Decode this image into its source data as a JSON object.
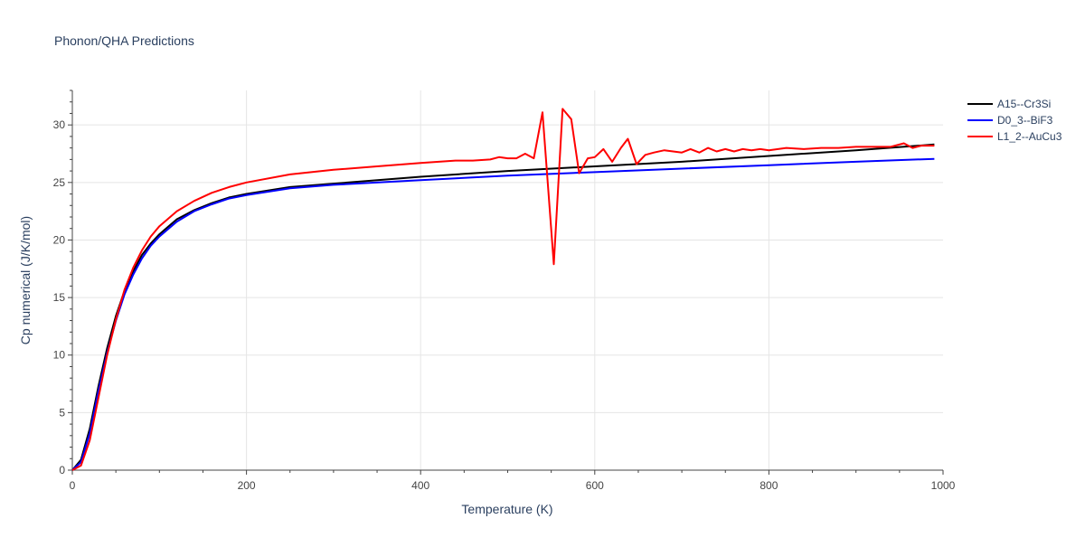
{
  "chart_data": {
    "type": "line",
    "title": "Phonon/QHA Predictions",
    "xlabel": "Temperature (K)",
    "ylabel": "Cp numerical (J/K/mol)",
    "xlim": [
      0,
      1000
    ],
    "ylim": [
      0,
      33
    ],
    "x_ticks": [
      0,
      200,
      400,
      600,
      800,
      1000
    ],
    "y_ticks": [
      0,
      5,
      10,
      15,
      20,
      25,
      30
    ],
    "grid": true,
    "legend_position": "top-right",
    "series": [
      {
        "name": "A15--Cr3Si",
        "color": "#000000",
        "points": [
          [
            0,
            0
          ],
          [
            10,
            0.9
          ],
          [
            20,
            3.6
          ],
          [
            30,
            7.3
          ],
          [
            40,
            10.6
          ],
          [
            50,
            13.4
          ],
          [
            60,
            15.6
          ],
          [
            70,
            17.3
          ],
          [
            80,
            18.7
          ],
          [
            90,
            19.7
          ],
          [
            100,
            20.5
          ],
          [
            120,
            21.8
          ],
          [
            140,
            22.6
          ],
          [
            160,
            23.2
          ],
          [
            180,
            23.7
          ],
          [
            200,
            24.0
          ],
          [
            250,
            24.6
          ],
          [
            300,
            24.9
          ],
          [
            400,
            25.5
          ],
          [
            500,
            26.0
          ],
          [
            600,
            26.4
          ],
          [
            700,
            26.8
          ],
          [
            800,
            27.3
          ],
          [
            900,
            27.8
          ],
          [
            990,
            28.3
          ]
        ]
      },
      {
        "name": "D0_3--BiF3",
        "color": "#0000ff",
        "points": [
          [
            0,
            0
          ],
          [
            10,
            0.7
          ],
          [
            20,
            3.2
          ],
          [
            30,
            6.9
          ],
          [
            40,
            10.2
          ],
          [
            50,
            13.0
          ],
          [
            60,
            15.3
          ],
          [
            70,
            17.0
          ],
          [
            80,
            18.4
          ],
          [
            90,
            19.5
          ],
          [
            100,
            20.3
          ],
          [
            120,
            21.6
          ],
          [
            140,
            22.5
          ],
          [
            160,
            23.1
          ],
          [
            180,
            23.6
          ],
          [
            200,
            23.9
          ],
          [
            250,
            24.5
          ],
          [
            300,
            24.8
          ],
          [
            400,
            25.2
          ],
          [
            500,
            25.6
          ],
          [
            600,
            25.9
          ],
          [
            700,
            26.2
          ],
          [
            800,
            26.5
          ],
          [
            900,
            26.8
          ],
          [
            990,
            27.05
          ]
        ]
      },
      {
        "name": "L1_2--AuCu3",
        "color": "#ff0000",
        "points": [
          [
            0,
            0
          ],
          [
            10,
            0.4
          ],
          [
            20,
            2.6
          ],
          [
            30,
            6.3
          ],
          [
            40,
            10.0
          ],
          [
            50,
            13.1
          ],
          [
            60,
            15.7
          ],
          [
            70,
            17.6
          ],
          [
            80,
            19.1
          ],
          [
            90,
            20.3
          ],
          [
            100,
            21.2
          ],
          [
            120,
            22.5
          ],
          [
            140,
            23.4
          ],
          [
            160,
            24.1
          ],
          [
            180,
            24.6
          ],
          [
            200,
            25.0
          ],
          [
            250,
            25.7
          ],
          [
            300,
            26.1
          ],
          [
            350,
            26.4
          ],
          [
            400,
            26.7
          ],
          [
            440,
            26.9
          ],
          [
            460,
            26.9
          ],
          [
            480,
            27.0
          ],
          [
            490,
            27.2
          ],
          [
            500,
            27.1
          ],
          [
            510,
            27.1
          ],
          [
            520,
            27.5
          ],
          [
            530,
            27.1
          ],
          [
            540,
            31.1
          ],
          [
            553,
            17.9
          ],
          [
            563,
            31.4
          ],
          [
            573,
            30.5
          ],
          [
            582,
            25.8
          ],
          [
            592,
            27.1
          ],
          [
            600,
            27.2
          ],
          [
            610,
            27.9
          ],
          [
            620,
            26.8
          ],
          [
            630,
            28.0
          ],
          [
            638,
            28.8
          ],
          [
            648,
            26.6
          ],
          [
            658,
            27.4
          ],
          [
            668,
            27.6
          ],
          [
            680,
            27.8
          ],
          [
            690,
            27.7
          ],
          [
            700,
            27.6
          ],
          [
            710,
            27.9
          ],
          [
            720,
            27.6
          ],
          [
            730,
            28.0
          ],
          [
            740,
            27.7
          ],
          [
            750,
            27.9
          ],
          [
            760,
            27.7
          ],
          [
            770,
            27.9
          ],
          [
            780,
            27.8
          ],
          [
            790,
            27.9
          ],
          [
            800,
            27.8
          ],
          [
            820,
            28.0
          ],
          [
            840,
            27.9
          ],
          [
            860,
            28.0
          ],
          [
            880,
            28.0
          ],
          [
            900,
            28.1
          ],
          [
            920,
            28.1
          ],
          [
            940,
            28.1
          ],
          [
            955,
            28.4
          ],
          [
            965,
            28.0
          ],
          [
            975,
            28.2
          ],
          [
            990,
            28.2
          ]
        ]
      }
    ]
  }
}
